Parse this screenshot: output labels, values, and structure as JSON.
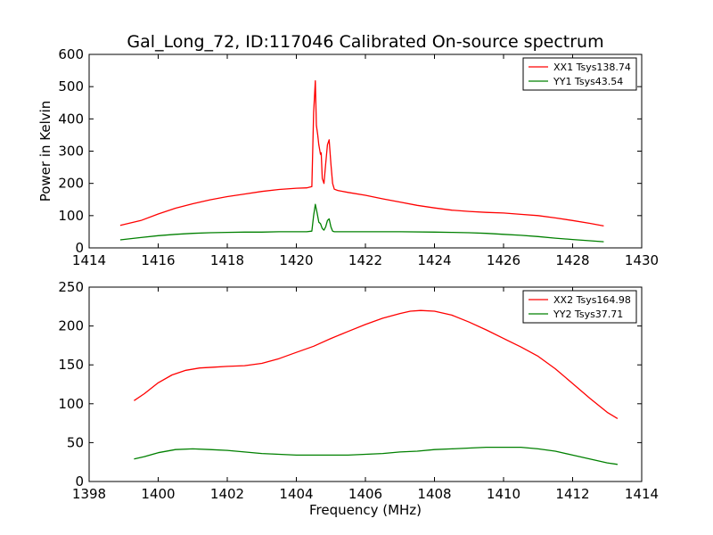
{
  "figure": {
    "title": "Gal_Long_72, ID:117046 Calibrated On-source spectrum"
  },
  "chart_data": [
    {
      "type": "line",
      "title": "Gal_Long_72, ID:117046 Calibrated On-source spectrum",
      "xlabel": "",
      "ylabel": "Power in Kelvin",
      "xlim": [
        1414,
        1430
      ],
      "ylim": [
        0,
        600
      ],
      "xticks": [
        1414,
        1416,
        1418,
        1420,
        1422,
        1424,
        1426,
        1428,
        1430
      ],
      "yticks": [
        0,
        100,
        200,
        300,
        400,
        500,
        600
      ],
      "grid": false,
      "legend": "top-right",
      "series": [
        {
          "name": "XX1 Tsys138.74",
          "color": "#ff0000",
          "x": [
            1414.9,
            1415.5,
            1416,
            1416.5,
            1417,
            1417.5,
            1418,
            1418.5,
            1419,
            1419.5,
            1420,
            1420.3,
            1420.45,
            1420.5,
            1420.55,
            1420.58,
            1420.62,
            1420.65,
            1420.7,
            1420.72,
            1420.75,
            1420.8,
            1420.85,
            1420.9,
            1420.95,
            1421.0,
            1421.05,
            1421.1,
            1421.2,
            1421.5,
            1422,
            1422.5,
            1423,
            1423.5,
            1424,
            1424.5,
            1425,
            1425.5,
            1426,
            1426.5,
            1427,
            1427.5,
            1428,
            1428.5,
            1428.9
          ],
          "y": [
            70,
            85,
            105,
            123,
            137,
            149,
            159,
            167,
            175,
            181,
            185,
            186,
            190,
            420,
            518,
            380,
            350,
            320,
            290,
            295,
            215,
            200,
            260,
            320,
            335,
            260,
            200,
            182,
            178,
            172,
            163,
            152,
            142,
            132,
            124,
            117,
            113,
            110,
            108,
            104,
            100,
            93,
            85,
            76,
            68
          ]
        },
        {
          "name": "YY1 Tsys43.54",
          "color": "#008000",
          "x": [
            1414.9,
            1415.5,
            1416,
            1416.5,
            1417,
            1417.5,
            1418,
            1418.5,
            1419,
            1419.5,
            1420,
            1420.3,
            1420.45,
            1420.5,
            1420.55,
            1420.6,
            1420.65,
            1420.7,
            1420.75,
            1420.8,
            1420.85,
            1420.9,
            1420.95,
            1421.0,
            1421.05,
            1421.1,
            1421.3,
            1422,
            1423,
            1424,
            1424.5,
            1425,
            1425.5,
            1426,
            1426.5,
            1427,
            1427.5,
            1428,
            1428.5,
            1428.9
          ],
          "y": [
            25,
            32,
            38,
            42,
            45,
            47,
            48,
            49,
            49,
            50,
            50,
            50,
            52,
            100,
            135,
            110,
            80,
            75,
            60,
            55,
            65,
            85,
            90,
            65,
            52,
            50,
            50,
            50,
            50,
            49,
            48,
            47,
            45,
            42,
            39,
            35,
            30,
            26,
            22,
            19
          ]
        }
      ]
    },
    {
      "type": "line",
      "title": "",
      "xlabel": "Frequency (MHz)",
      "ylabel": "",
      "xlim": [
        1398,
        1414
      ],
      "ylim": [
        0,
        250
      ],
      "xticks": [
        1398,
        1400,
        1402,
        1404,
        1406,
        1408,
        1410,
        1412,
        1414
      ],
      "yticks": [
        0,
        50,
        100,
        150,
        200,
        250
      ],
      "grid": false,
      "legend": "top-right",
      "series": [
        {
          "name": "XX2 Tsys164.98",
          "color": "#ff0000",
          "x": [
            1399.3,
            1399.6,
            1400,
            1400.4,
            1400.8,
            1401.2,
            1401.6,
            1402,
            1402.5,
            1403,
            1403.5,
            1404,
            1404.5,
            1405,
            1405.5,
            1406,
            1406.5,
            1407,
            1407.3,
            1407.6,
            1408,
            1408.5,
            1409,
            1409.5,
            1410,
            1410.5,
            1411,
            1411.5,
            1412,
            1412.5,
            1413,
            1413.3
          ],
          "y": [
            104,
            113,
            127,
            137,
            143,
            146,
            147,
            148,
            149,
            152,
            158,
            166,
            174,
            184,
            193,
            202,
            210,
            216,
            219,
            220,
            219,
            214,
            205,
            195,
            184,
            173,
            161,
            145,
            126,
            107,
            89,
            81
          ]
        },
        {
          "name": "YY2 Tsys37.71",
          "color": "#008000",
          "x": [
            1399.3,
            1399.6,
            1400,
            1400.5,
            1401,
            1401.5,
            1402,
            1402.5,
            1403,
            1403.5,
            1404,
            1404.5,
            1405,
            1405.5,
            1406,
            1406.5,
            1407,
            1407.5,
            1408,
            1408.5,
            1409,
            1409.5,
            1410,
            1410.5,
            1411,
            1411.5,
            1412,
            1412.5,
            1413,
            1413.3
          ],
          "y": [
            29,
            32,
            37,
            41,
            42,
            41,
            40,
            38,
            36,
            35,
            34,
            34,
            34,
            34,
            35,
            36,
            38,
            39,
            41,
            42,
            43,
            44,
            44,
            44,
            42,
            39,
            34,
            29,
            24,
            22
          ]
        }
      ]
    }
  ]
}
